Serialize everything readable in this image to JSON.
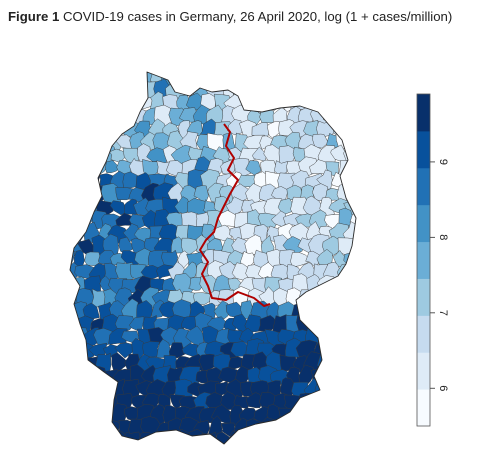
{
  "figure": {
    "label": "Figure 1",
    "title": "COVID-19 cases in Germany, 26 April 2020, log (1 + cases/million)"
  },
  "legend": {
    "min": 5.5,
    "max": 9.9,
    "ticks": [
      6,
      7,
      8,
      9
    ],
    "colors": [
      "#f7fbff",
      "#deebf7",
      "#c6dbef",
      "#9ecae1",
      "#6baed6",
      "#4292c6",
      "#2171b5",
      "#08519c",
      "#08306b"
    ]
  },
  "map": {
    "border_color": "#b00000",
    "outline_color": "#2b2b2b"
  }
}
